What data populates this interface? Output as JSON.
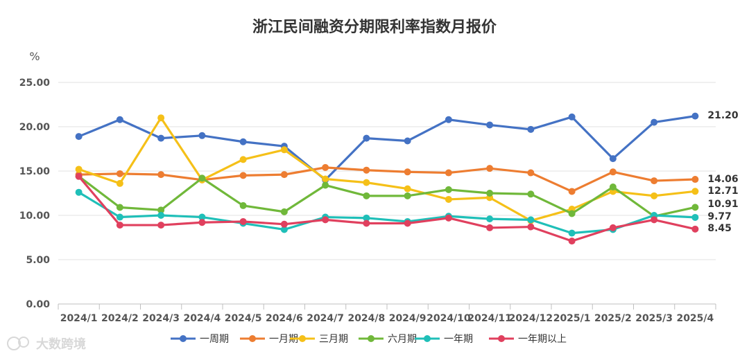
{
  "chart_data": {
    "type": "line",
    "title": "浙江民间融资分期限利率指数月报价",
    "ylabel": "%",
    "ylim": [
      0,
      25
    ],
    "yticks": [
      "0.00",
      "5.00",
      "10.00",
      "15.00",
      "20.00",
      "25.00"
    ],
    "grid": true,
    "legend_position": "bottom",
    "categories": [
      "2024/1",
      "2024/2",
      "2024/3",
      "2024/4",
      "2024/5",
      "2024/6",
      "2024/7",
      "2024/8",
      "2024/9",
      "2024/10",
      "2024/11",
      "2024/12",
      "2025/1",
      "2025/2",
      "2025/3",
      "2025/4"
    ],
    "series": [
      {
        "name": "一周期",
        "color": "#4472C4",
        "values": [
          18.9,
          20.8,
          18.7,
          19.0,
          18.3,
          17.8,
          14.0,
          18.7,
          18.4,
          20.8,
          20.2,
          19.7,
          21.1,
          16.4,
          20.5,
          21.2
        ],
        "end_label": "21.20"
      },
      {
        "name": "一月期",
        "color": "#ED7D31",
        "values": [
          14.6,
          14.7,
          14.6,
          14.0,
          14.5,
          14.6,
          15.4,
          15.1,
          14.9,
          14.8,
          15.3,
          14.8,
          12.7,
          14.9,
          13.9,
          14.06
        ],
        "end_label": "14.06"
      },
      {
        "name": "三月期",
        "color": "#F5C018",
        "values": [
          15.2,
          13.6,
          21.0,
          14.0,
          16.3,
          17.4,
          14.1,
          13.7,
          13.0,
          11.8,
          12.0,
          9.4,
          10.7,
          12.7,
          12.2,
          12.71
        ],
        "end_label": "12.71"
      },
      {
        "name": "六月期",
        "color": "#70B83A",
        "values": [
          14.4,
          10.9,
          10.6,
          14.2,
          11.1,
          10.4,
          13.4,
          12.2,
          12.2,
          12.9,
          12.5,
          12.4,
          10.2,
          13.2,
          9.9,
          10.91
        ],
        "end_label": "10.91"
      },
      {
        "name": "一年期",
        "color": "#1FBFB8",
        "values": [
          12.6,
          9.8,
          10.0,
          9.8,
          9.1,
          8.4,
          9.8,
          9.7,
          9.3,
          9.9,
          9.6,
          9.5,
          8.0,
          8.4,
          10.0,
          9.77
        ],
        "end_label": "9.77"
      },
      {
        "name": "一年期以上",
        "color": "#E0405E",
        "values": [
          14.4,
          8.9,
          8.9,
          9.2,
          9.3,
          9.0,
          9.5,
          9.1,
          9.1,
          9.7,
          8.6,
          8.7,
          7.1,
          8.6,
          9.5,
          8.45
        ],
        "end_label": "8.45"
      }
    ]
  },
  "watermark": "大数跨境"
}
